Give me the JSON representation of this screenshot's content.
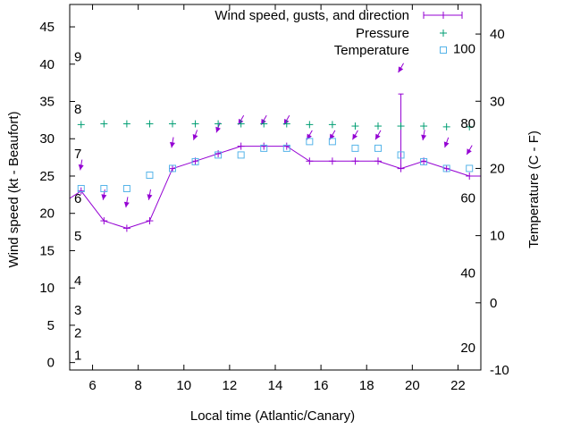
{
  "chart_data": {
    "type": "line",
    "title": "",
    "xlabel": "Local time (Atlantic/Canary)",
    "ylabel_left": "Wind speed (kt - Beaufort)",
    "ylabel_right": "Temperature (C - F)",
    "xlim": [
      5,
      23
    ],
    "ylim_left": [
      -1,
      48
    ],
    "ylim_right": [
      -10,
      44.4
    ],
    "x_ticks": [
      6,
      8,
      10,
      12,
      14,
      16,
      18,
      20,
      22
    ],
    "y_ticks_left": [
      0,
      5,
      10,
      15,
      20,
      25,
      30,
      35,
      40,
      45
    ],
    "y_ticks_right": [
      -10,
      0,
      10,
      20,
      30,
      40
    ],
    "beaufort_labels": [
      {
        "label": "1",
        "kt": 1
      },
      {
        "label": "2",
        "kt": 4
      },
      {
        "label": "3",
        "kt": 7
      },
      {
        "label": "4",
        "kt": 11
      },
      {
        "label": "5",
        "kt": 17
      },
      {
        "label": "6",
        "kt": 22
      },
      {
        "label": "7",
        "kt": 28
      },
      {
        "label": "8",
        "kt": 34
      },
      {
        "label": "9",
        "kt": 41
      }
    ],
    "fahrenheit_labels": [
      {
        "label": "20",
        "c": -6.7
      },
      {
        "label": "40",
        "c": 4.4
      },
      {
        "label": "60",
        "c": 15.6
      },
      {
        "label": "80",
        "c": 26.7
      },
      {
        "label": "100",
        "c": 37.8
      }
    ],
    "legend": [
      {
        "name": "Wind speed, gusts, and direction",
        "color": "#9400d3"
      },
      {
        "name": "Pressure",
        "color": "#009e73"
      },
      {
        "name": "Temperature",
        "color": "#56b4e9"
      }
    ],
    "series": [
      {
        "name": "Wind speed, gusts, and direction",
        "color": "#9400d3",
        "x": [
          5,
          5.5,
          6.5,
          7.5,
          8.5,
          9.5,
          10.5,
          11.5,
          12.5,
          13.5,
          14.5,
          15.5,
          16.5,
          17.5,
          18.5,
          19.5,
          20.5,
          21.5,
          22.5,
          23
        ],
        "values": [
          22,
          23,
          19,
          18,
          19,
          26,
          27,
          28,
          29,
          29,
          29,
          27,
          27,
          27,
          27,
          26,
          27,
          26,
          25,
          25
        ],
        "gusts": [
          null,
          null,
          null,
          null,
          null,
          null,
          null,
          null,
          null,
          null,
          null,
          null,
          null,
          null,
          null,
          36,
          null,
          null,
          null,
          null
        ],
        "arrow_x": [
          5.5,
          6.5,
          7.5,
          8.5,
          9.5,
          10.5,
          11.5,
          12.5,
          13.5,
          14.5,
          15.5,
          16.5,
          17.5,
          18.5,
          19.5,
          20.5,
          21.5,
          22.5
        ],
        "arrow_y": [
          26.5,
          22.5,
          21.5,
          22.5,
          29.5,
          30.5,
          31.5,
          32.5,
          32.5,
          32.5,
          30.5,
          30.5,
          30.5,
          30.5,
          39.5,
          30.5,
          29.5,
          28.5
        ],
        "direction_deg": [
          10,
          10,
          10,
          10,
          10,
          20,
          20,
          30,
          30,
          30,
          30,
          30,
          30,
          30,
          30,
          10,
          20,
          30
        ]
      },
      {
        "name": "Pressure",
        "color": "#009e73",
        "x": [
          5.5,
          6.5,
          7.5,
          8.5,
          9.5,
          10.5,
          11.5,
          12.5,
          13.5,
          14.5,
          15.5,
          16.5,
          17.5,
          18.5,
          19.5,
          20.5,
          21.5,
          22.5
        ],
        "values": [
          31.9,
          32,
          32,
          32,
          32,
          32,
          32,
          32,
          32,
          32,
          31.9,
          31.9,
          31.7,
          31.7,
          31.7,
          31.7,
          31.6,
          31.6
        ]
      },
      {
        "name": "Temperature",
        "color": "#56b4e9",
        "x": [
          5.5,
          6.5,
          7.5,
          8.5,
          9.5,
          10.5,
          11.5,
          12.5,
          13.5,
          14.5,
          15.5,
          16.5,
          17.5,
          18.5,
          19.5,
          20.5,
          21.5,
          22.5
        ],
        "values": [
          17,
          17,
          17,
          19,
          20,
          21,
          22,
          22,
          23,
          23,
          24,
          24,
          23,
          23,
          22,
          21,
          20,
          20
        ]
      }
    ]
  }
}
